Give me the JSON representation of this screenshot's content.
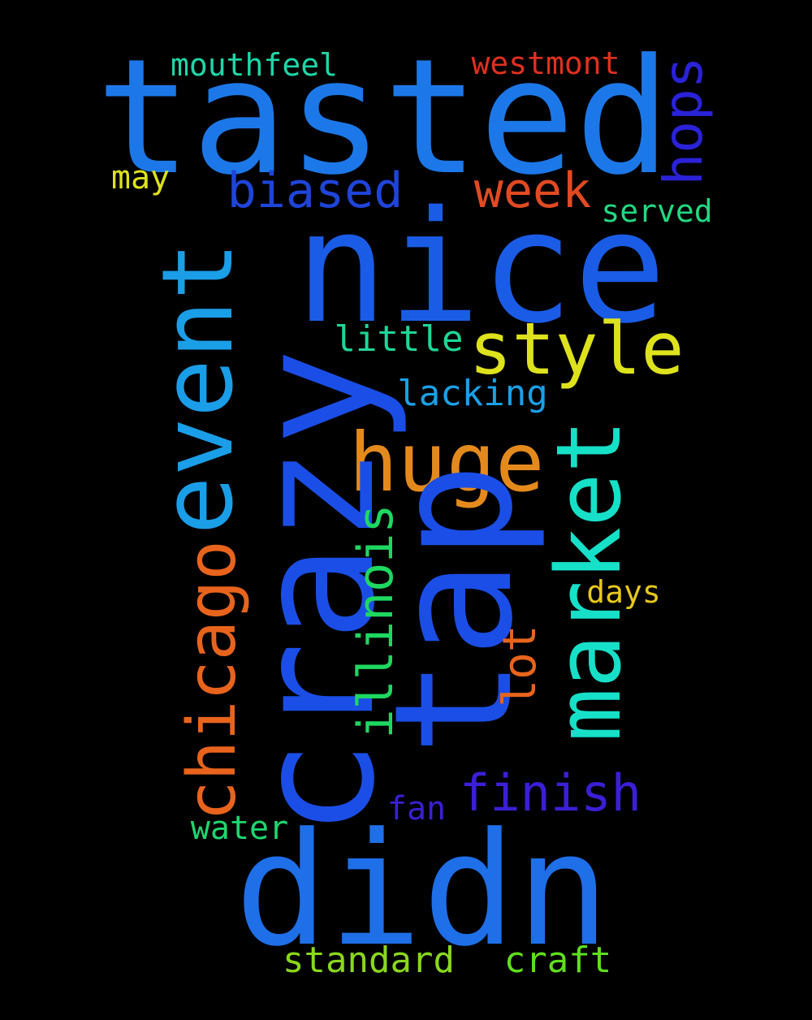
{
  "words": {
    "tasted": "tasted",
    "nice": "nice",
    "crazy": "crazy",
    "tap": "tap",
    "didn": "didn",
    "event": "event",
    "market": "market",
    "huge": "huge",
    "style": "style",
    "chicago": "chicago",
    "illinois": "illinois",
    "week": "week",
    "biased": "biased",
    "finish": "finish",
    "hops": "hops",
    "lot": "lot",
    "mouthfeel": "mouthfeel",
    "westmont": "westmont",
    "may": "may",
    "served": "served",
    "little": "little",
    "lacking": "lacking",
    "days": "days",
    "fan": "fan",
    "water": "water",
    "standard": "standard",
    "craft": "craft"
  },
  "colors": {
    "background": "#000000",
    "blue": "#1a4ee6",
    "sky": "#1a9ee8",
    "teal": "#16e0c8",
    "yellow": "#dde21c",
    "orange": "#e8641c",
    "red": "#e0301e",
    "green": "#1ed860",
    "lime": "#8ad81c",
    "violet": "#3a1fd6"
  }
}
